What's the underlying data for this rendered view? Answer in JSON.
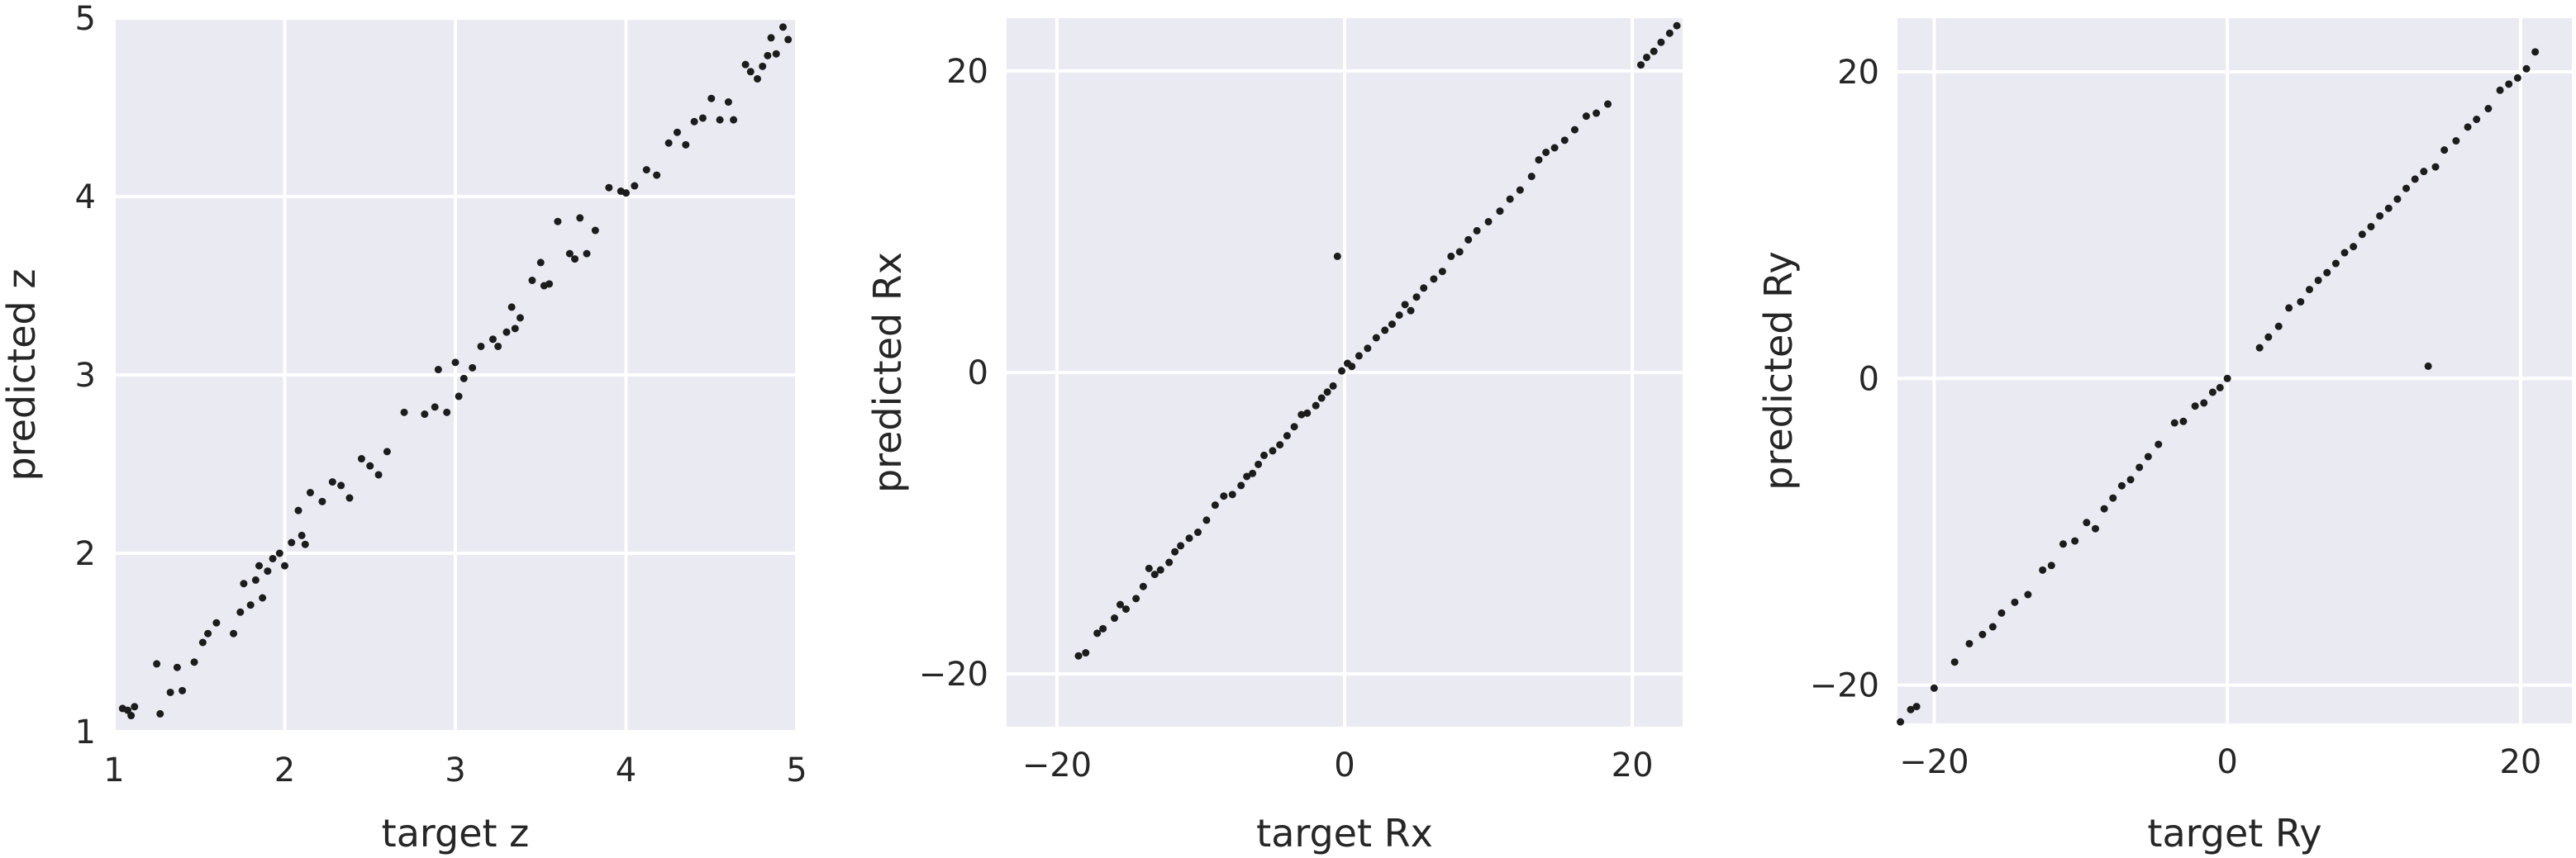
{
  "colors": {
    "panel_background": "#eaeaf2",
    "grid": "#ffffff",
    "points": "#1c1c1c",
    "text": "#262626"
  },
  "chart_data": [
    {
      "type": "scatter",
      "title": "",
      "xlabel": "target z",
      "ylabel": "predicted z",
      "xlim": [
        1,
        5
      ],
      "ylim": [
        1,
        5
      ],
      "xticks": [
        1,
        2,
        3,
        4,
        5
      ],
      "yticks": [
        1,
        2,
        3,
        4,
        5
      ],
      "tick_labels_x": [
        "1",
        "2",
        "3",
        "4",
        "5"
      ],
      "tick_labels_y": [
        "1",
        "2",
        "3",
        "4",
        "5"
      ],
      "grid": true,
      "legend": "none",
      "x": [
        1.05,
        1.08,
        1.1,
        1.12,
        1.25,
        1.27,
        1.33,
        1.37,
        1.4,
        1.47,
        1.52,
        1.55,
        1.6,
        1.7,
        1.74,
        1.76,
        1.8,
        1.83,
        1.85,
        1.87,
        1.9,
        1.93,
        1.97,
        2.0,
        2.04,
        2.08,
        2.1,
        2.12,
        2.15,
        2.22,
        2.28,
        2.33,
        2.38,
        2.45,
        2.5,
        2.55,
        2.6,
        2.7,
        2.82,
        2.88,
        2.9,
        2.95,
        3.0,
        3.02,
        3.05,
        3.1,
        3.15,
        3.22,
        3.25,
        3.3,
        3.33,
        3.35,
        3.38,
        3.45,
        3.5,
        3.52,
        3.55,
        3.6,
        3.67,
        3.7,
        3.73,
        3.77,
        3.82,
        3.9,
        3.97,
        4.0,
        4.05,
        4.12,
        4.18,
        4.25,
        4.3,
        4.35,
        4.4,
        4.45,
        4.5,
        4.55,
        4.6,
        4.63,
        4.7,
        4.73,
        4.77,
        4.8,
        4.83,
        4.85,
        4.88,
        4.92,
        4.95
      ],
      "y": [
        1.13,
        1.12,
        1.09,
        1.14,
        1.38,
        1.1,
        1.22,
        1.36,
        1.23,
        1.39,
        1.5,
        1.55,
        1.61,
        1.55,
        1.67,
        1.83,
        1.71,
        1.85,
        1.93,
        1.75,
        1.9,
        1.97,
        2.0,
        1.93,
        2.06,
        2.24,
        2.1,
        2.05,
        2.34,
        2.29,
        2.4,
        2.38,
        2.31,
        2.53,
        2.49,
        2.44,
        2.57,
        2.79,
        2.78,
        2.82,
        3.03,
        2.79,
        3.07,
        2.88,
        2.98,
        3.04,
        3.16,
        3.2,
        3.16,
        3.24,
        3.38,
        3.26,
        3.32,
        3.53,
        3.63,
        3.5,
        3.51,
        3.86,
        3.68,
        3.65,
        3.88,
        3.68,
        3.81,
        4.05,
        4.03,
        4.02,
        4.06,
        4.15,
        4.12,
        4.3,
        4.36,
        4.29,
        4.42,
        4.44,
        4.55,
        4.43,
        4.53,
        4.43,
        4.74,
        4.7,
        4.66,
        4.73,
        4.79,
        4.89,
        4.8,
        4.95,
        4.88
      ]
    },
    {
      "type": "scatter",
      "title": "",
      "xlabel": "target Rx",
      "ylabel": "predicted Rx",
      "xlim": [
        -23.5,
        23.5
      ],
      "ylim": [
        -23.5,
        23.5
      ],
      "xticks": [
        -20,
        0,
        20
      ],
      "yticks": [
        -20,
        0,
        20
      ],
      "tick_labels_x": [
        "−20",
        "0",
        "20"
      ],
      "tick_labels_y": [
        "−20",
        "0",
        "20"
      ],
      "grid": true,
      "legend": "none",
      "x": [
        -18.5,
        -18.0,
        -17.2,
        -16.8,
        -16.0,
        -15.6,
        -15.2,
        -14.5,
        -14.0,
        -13.6,
        -13.2,
        -12.8,
        -12.2,
        -11.8,
        -11.4,
        -10.8,
        -10.2,
        -9.6,
        -9.0,
        -8.4,
        -7.8,
        -7.2,
        -6.8,
        -6.4,
        -6.0,
        -5.6,
        -5.0,
        -4.5,
        -4.0,
        -3.5,
        -3.0,
        -2.6,
        -2.0,
        -1.6,
        -1.2,
        -0.8,
        -0.5,
        -0.2,
        0.2,
        0.5,
        1.0,
        1.6,
        2.2,
        2.8,
        3.3,
        3.8,
        4.2,
        4.6,
        5.0,
        5.5,
        6.2,
        6.8,
        7.4,
        8.0,
        8.6,
        9.2,
        10.0,
        10.8,
        11.5,
        12.2,
        13.0,
        13.5,
        14.0,
        14.6,
        15.3,
        16.0,
        16.8,
        17.5,
        18.3,
        20.6,
        21.0,
        21.5,
        22.0,
        22.6,
        23.1
      ],
      "y": [
        -18.8,
        -18.6,
        -17.3,
        -17.0,
        -16.3,
        -15.4,
        -15.7,
        -15.0,
        -14.2,
        -13.0,
        -13.4,
        -13.1,
        -12.6,
        -11.9,
        -11.5,
        -11.0,
        -10.6,
        -9.8,
        -8.8,
        -8.2,
        -8.1,
        -7.5,
        -6.9,
        -6.7,
        -6.1,
        -5.5,
        -5.2,
        -4.8,
        -4.2,
        -3.6,
        -2.8,
        -2.7,
        -2.2,
        -1.7,
        -1.3,
        -0.9,
        7.7,
        0.1,
        0.6,
        0.4,
        1.1,
        1.6,
        2.3,
        2.8,
        3.2,
        3.8,
        4.5,
        4.1,
        5.0,
        5.6,
        6.2,
        6.7,
        7.7,
        8.0,
        8.8,
        9.4,
        10.0,
        10.7,
        11.5,
        12.1,
        13.0,
        14.1,
        14.6,
        14.9,
        15.4,
        16.1,
        17.0,
        17.2,
        17.8,
        20.4,
        20.9,
        21.3,
        21.9,
        22.5,
        23.0
      ]
    },
    {
      "type": "scatter",
      "title": "",
      "xlabel": "target Ry",
      "ylabel": "predicted Ry",
      "xlim": [
        -22.5,
        23.5
      ],
      "ylim": [
        -22.5,
        23.5
      ],
      "xticks": [
        -20,
        0,
        20
      ],
      "yticks": [
        -20,
        0,
        20
      ],
      "tick_labels_x": [
        "−20",
        "0",
        "20"
      ],
      "tick_labels_y": [
        "−20",
        "0",
        "20"
      ],
      "grid": true,
      "legend": "none",
      "x": [
        -22.3,
        -21.6,
        -21.2,
        -20.0,
        -18.6,
        -17.6,
        -16.7,
        -16.0,
        -15.4,
        -14.5,
        -13.6,
        -12.6,
        -12.0,
        -11.2,
        -10.4,
        -9.6,
        -9.0,
        -8.4,
        -7.8,
        -7.2,
        -6.6,
        -6.0,
        -5.4,
        -4.7,
        -3.6,
        -3.0,
        -2.2,
        -1.6,
        -1.0,
        -0.5,
        0.0,
        2.2,
        2.8,
        3.5,
        4.2,
        5.0,
        5.6,
        6.2,
        6.8,
        7.4,
        8.0,
        8.6,
        9.2,
        9.8,
        10.4,
        11.0,
        11.6,
        12.2,
        12.8,
        13.4,
        13.7,
        14.2,
        14.8,
        15.6,
        16.4,
        17.0,
        17.8,
        18.6,
        19.2,
        19.8,
        20.4,
        21.0
      ],
      "y": [
        -22.4,
        -21.6,
        -21.4,
        -20.2,
        -18.5,
        -17.3,
        -16.7,
        -16.2,
        -15.3,
        -14.6,
        -14.1,
        -12.5,
        -12.2,
        -10.8,
        -10.6,
        -9.4,
        -9.8,
        -8.5,
        -7.8,
        -7.0,
        -6.6,
        -5.8,
        -5.1,
        -4.3,
        -2.9,
        -2.8,
        -1.8,
        -1.6,
        -0.9,
        -0.6,
        0.0,
        2.0,
        2.7,
        3.4,
        4.6,
        5.0,
        5.8,
        6.4,
        6.9,
        7.5,
        8.2,
        8.6,
        9.4,
        9.9,
        10.6,
        11.1,
        11.7,
        12.4,
        13.0,
        13.5,
        0.8,
        13.8,
        14.9,
        15.5,
        16.4,
        16.9,
        17.6,
        18.8,
        19.2,
        19.6,
        20.2,
        21.3
      ]
    }
  ]
}
